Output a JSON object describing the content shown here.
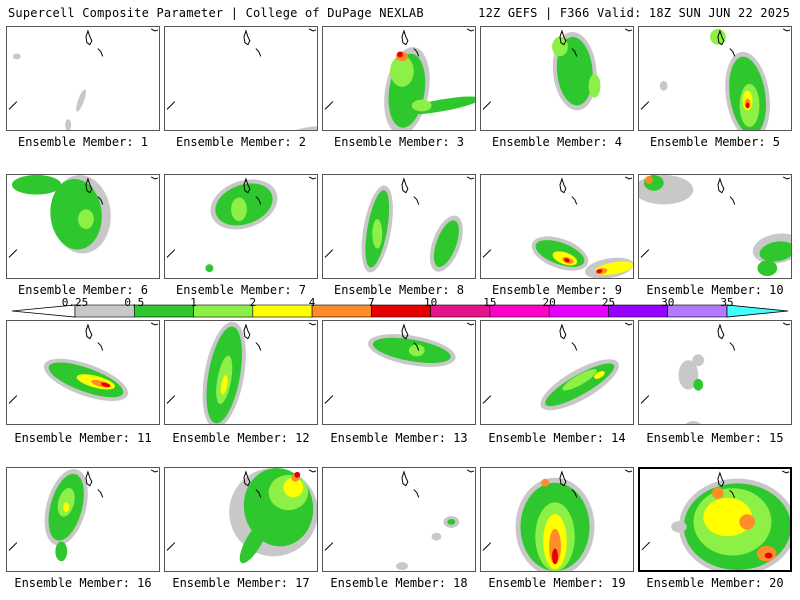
{
  "header": {
    "left": "Supercell Composite Parameter | College of DuPage NEXLAB",
    "right": "12Z GEFS | F366 Valid: 18Z SUN JUN 22 2025"
  },
  "colors": {
    "gray": "#c8c8c8",
    "green_dark": "#2ec82e",
    "green_light": "#8cf046",
    "yellow": "#ffff00",
    "orange": "#ff8c28",
    "red": "#e60000",
    "magenta_dark": "#e6148c",
    "magenta": "#ff00c8",
    "violet": "#e600ff",
    "purple": "#9600ff",
    "lavender": "#b478ff",
    "cyan": "#40ffff"
  },
  "colorbar": {
    "labels": [
      "0.25",
      "0.5",
      "1",
      "2",
      "4",
      "7",
      "10",
      "15",
      "20",
      "25",
      "30",
      "35"
    ],
    "segment_colors": [
      "#ffffff",
      "#c8c8c8",
      "#2ec82e",
      "#8cf046",
      "#ffff00",
      "#ff8c28",
      "#e60000",
      "#e6148c",
      "#ff00c8",
      "#e600ff",
      "#9600ff",
      "#b478ff",
      "#40ffff"
    ]
  },
  "members": [
    {
      "label": "Ensemble Member: 1"
    },
    {
      "label": "Ensemble Member: 2"
    },
    {
      "label": "Ensemble Member: 3"
    },
    {
      "label": "Ensemble Member: 4"
    },
    {
      "label": "Ensemble Member: 5"
    },
    {
      "label": "Ensemble Member: 6"
    },
    {
      "label": "Ensemble Member: 7"
    },
    {
      "label": "Ensemble Member: 8"
    },
    {
      "label": "Ensemble Member: 9"
    },
    {
      "label": "Ensemble Member: 10"
    },
    {
      "label": "Ensemble Member: 11"
    },
    {
      "label": "Ensemble Member: 12"
    },
    {
      "label": "Ensemble Member: 13"
    },
    {
      "label": "Ensemble Member: 14"
    },
    {
      "label": "Ensemble Member: 15"
    },
    {
      "label": "Ensemble Member: 16"
    },
    {
      "label": "Ensemble Member: 17"
    },
    {
      "label": "Ensemble Member: 18"
    },
    {
      "label": "Ensemble Member: 19"
    },
    {
      "label": "Ensemble Member: 20"
    }
  ]
}
